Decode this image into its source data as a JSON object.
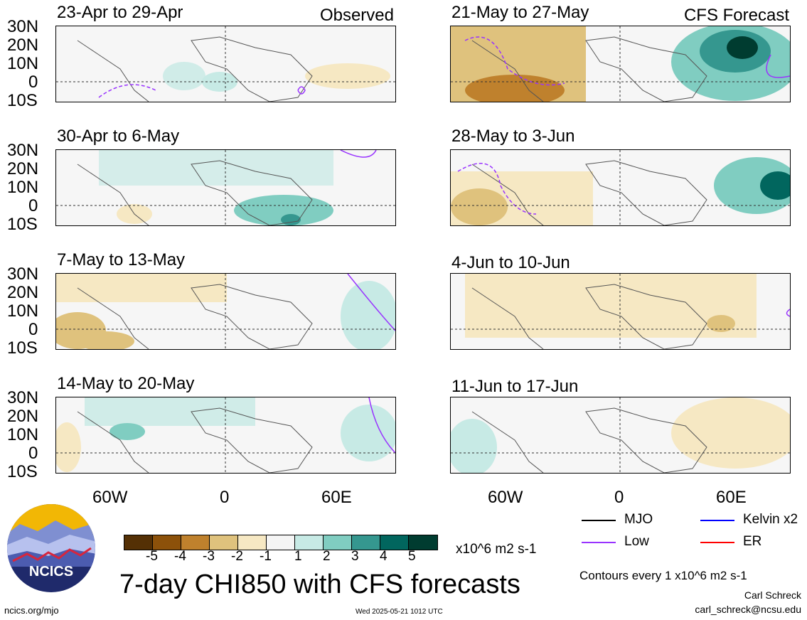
{
  "panels": [
    {
      "title": "23-Apr to 29-Apr",
      "label": "Observed"
    },
    {
      "title": "30-Apr to 6-May",
      "label": ""
    },
    {
      "title": "7-May to 13-May",
      "label": ""
    },
    {
      "title": "14-May to 20-May",
      "label": ""
    },
    {
      "title": "21-May to 27-May",
      "label": "CFS Forecast"
    },
    {
      "title": "28-May to 3-Jun",
      "label": ""
    },
    {
      "title": "4-Jun to 10-Jun",
      "label": ""
    },
    {
      "title": "11-Jun to 17-Jun",
      "label": ""
    }
  ],
  "lat_labels": [
    "30N",
    "20N",
    "10N",
    "0",
    "10S"
  ],
  "lon_labels": [
    "60W",
    "0",
    "60E"
  ],
  "colorbar": {
    "colors": [
      "#543005",
      "#8c510a",
      "#bf812d",
      "#dfc27d",
      "#f6e8c3",
      "#f5f5f5",
      "#c7eae5",
      "#80cdc1",
      "#35978f",
      "#01665e",
      "#003c30"
    ],
    "ticks": [
      "-5",
      "-4",
      "-3",
      "-2",
      "-1",
      "1",
      "2",
      "3",
      "4",
      "5"
    ],
    "units": "x10^6 m2 s-1"
  },
  "main_title": "7-day CHI850 with CFS forecasts",
  "legend": [
    {
      "label": "MJO",
      "color": "#000000"
    },
    {
      "label": "Kelvin x2",
      "color": "#0000ff"
    },
    {
      "label": "Low",
      "color": "#9933ff"
    },
    {
      "label": "ER",
      "color": "#ff0000"
    }
  ],
  "contours_note": "Contours every 1 x10^6 m2 s-1",
  "credit": {
    "name": "Carl Schreck",
    "email": "carl_schreck@ncsu.edu"
  },
  "footer": {
    "left": "ncics.org/mjo",
    "center": "Wed 2025-05-21 1012 UTC"
  },
  "logo": {
    "text": "NCICS",
    "icon": "ncics-mountain-logo-icon"
  }
}
